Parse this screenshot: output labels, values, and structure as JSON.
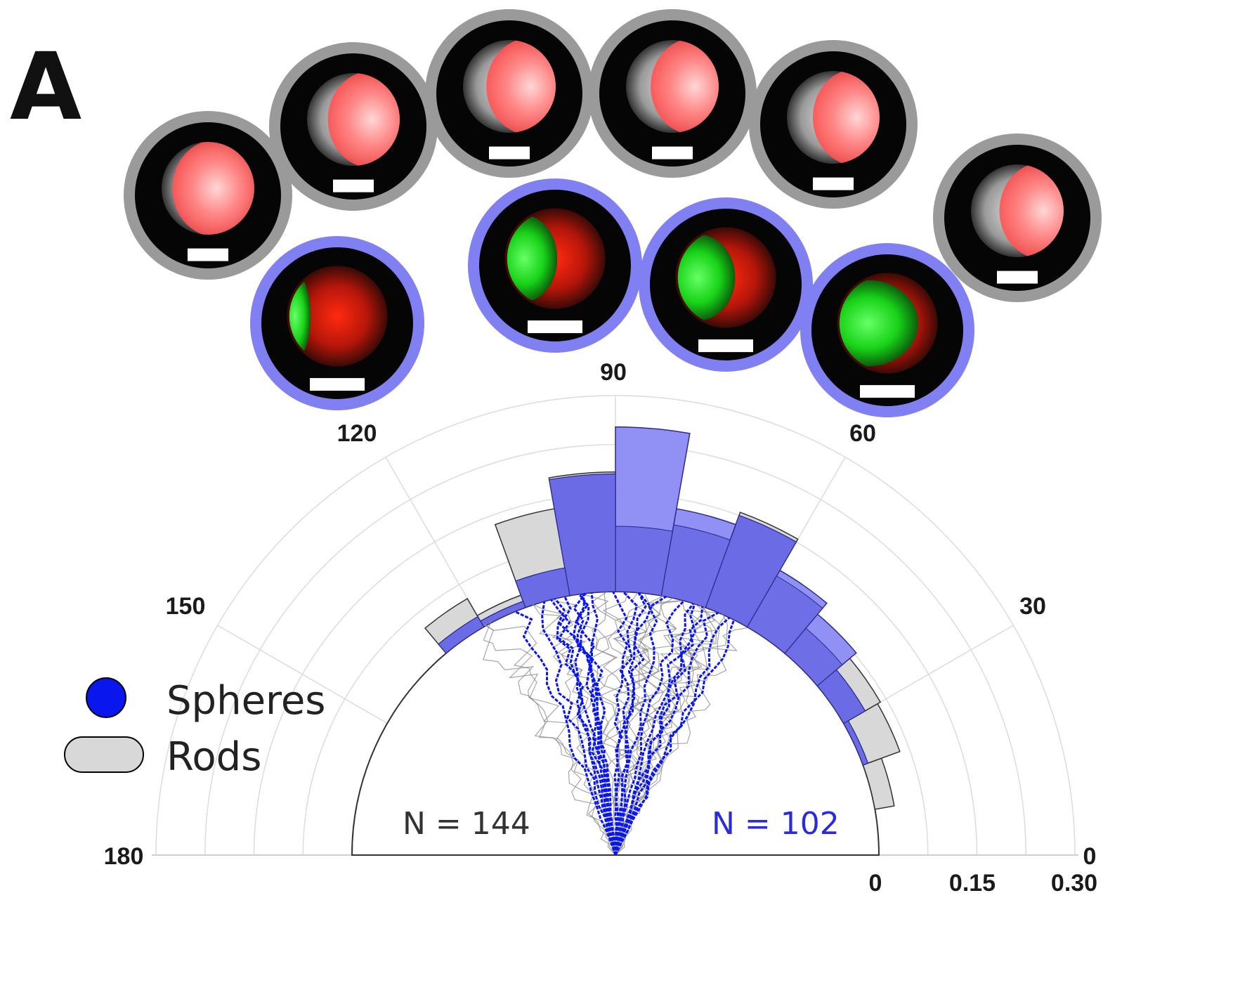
{
  "panel_label": "A",
  "colors": {
    "spheres": "#0a16ee",
    "spheres_bar": "#6a6ae6",
    "spheres_bar_light": "#8a8af4",
    "rods_bar": "#d8d8d8",
    "grid": "#dcdcdc",
    "red_colony": "#ff7a7a",
    "green_colony": "#1ee21e",
    "scale_bar": "#ffffff",
    "ring_rods": "#9a9a9a",
    "ring_spheres": "#8080f2"
  },
  "legend": {
    "spheres_label": "Spheres",
    "rods_label": "Rods"
  },
  "counts": {
    "rods": "N = 144",
    "spheres": "N = 102"
  },
  "chart_data": {
    "type": "polar-histogram",
    "angle_unit": "degrees",
    "angle_ticks": [
      "0",
      "30",
      "60",
      "90",
      "120",
      "150",
      "180"
    ],
    "radial_ticks": [
      "0",
      "0.15",
      "0.30"
    ],
    "radial_range": [
      0,
      0.3
    ],
    "grid": true,
    "legend_position": "left",
    "series": [
      {
        "name": "Spheres",
        "bins": [
          {
            "from": 20,
            "to": 30,
            "value": 0.008
          },
          {
            "from": 30,
            "to": 40,
            "value": 0.038
          },
          {
            "from": 40,
            "to": 50,
            "value": 0.078
          },
          {
            "from": 50,
            "to": 60,
            "value": 0.1
          },
          {
            "from": 60,
            "to": 70,
            "value": 0.15
          },
          {
            "from": 70,
            "to": 80,
            "value": 0.135
          },
          {
            "from": 80,
            "to": 90,
            "value": 0.252
          },
          {
            "from": 90,
            "to": 100,
            "value": 0.18
          },
          {
            "from": 100,
            "to": 110,
            "value": 0.043
          },
          {
            "from": 110,
            "to": 120,
            "value": 0.01
          },
          {
            "from": 120,
            "to": 130,
            "value": 0.018
          }
        ]
      },
      {
        "name": "Rods",
        "bins": [
          {
            "from": 10,
            "to": 20,
            "value": 0.03
          },
          {
            "from": 20,
            "to": 30,
            "value": 0.06
          },
          {
            "from": 30,
            "to": 40,
            "value": 0.065
          },
          {
            "from": 40,
            "to": 50,
            "value": 0.05
          },
          {
            "from": 50,
            "to": 60,
            "value": 0.09
          },
          {
            "from": 60,
            "to": 70,
            "value": 0.155
          },
          {
            "from": 70,
            "to": 80,
            "value": 0.11
          },
          {
            "from": 80,
            "to": 90,
            "value": 0.1
          },
          {
            "from": 90,
            "to": 100,
            "value": 0.183
          },
          {
            "from": 100,
            "to": 110,
            "value": 0.135
          },
          {
            "from": 110,
            "to": 120,
            "value": 0.02
          },
          {
            "from": 120,
            "to": 130,
            "value": 0.05
          }
        ]
      }
    ]
  },
  "colony_images": {
    "rods": [
      {
        "green_side": "left",
        "boundary_angle": 40
      },
      {
        "green_side": "left",
        "boundary_angle": 80
      },
      {
        "green_side": "left",
        "boundary_angle": 90
      },
      {
        "green_side": "left",
        "boundary_angle": 95
      },
      {
        "green_side": "left",
        "boundary_angle": 100
      },
      {
        "green_side": "left",
        "boundary_angle": 110
      }
    ],
    "spheres": [
      {
        "green_side": "left",
        "boundary_angle": 50
      },
      {
        "green_side": "left",
        "boundary_angle": 90
      },
      {
        "green_side": "left",
        "boundary_angle": 100
      },
      {
        "green_side": "left",
        "boundary_angle": 130
      }
    ]
  }
}
